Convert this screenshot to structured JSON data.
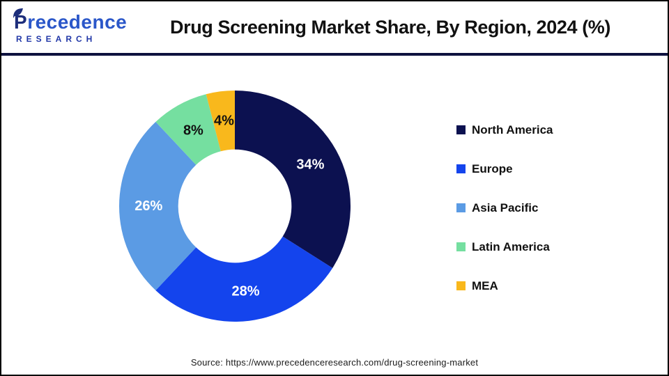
{
  "header": {
    "logo": {
      "word": "Precedence",
      "subword": "RESEARCH"
    },
    "title": "Drug Screening Market Share, By Region, 2024 (%)"
  },
  "chart_data": {
    "type": "pie",
    "subtype": "donut",
    "title": "Drug Screening Market Share, By Region, 2024 (%)",
    "unit": "%",
    "direction": "clockwise",
    "start_angle_deg": 0,
    "inner_radius_ratio": 0.49,
    "legend_position": "right",
    "labels": [
      "North America",
      "Europe",
      "Asia Pacific",
      "Latin America",
      "MEA"
    ],
    "values": [
      34,
      28,
      26,
      8,
      4
    ],
    "colors": [
      "#0C1150",
      "#1444ED",
      "#5B9BE4",
      "#75DFA0",
      "#F9B81C"
    ],
    "value_label_colors": [
      "#FFFFFF",
      "#FFFFFF",
      "#FFFFFF",
      "#111111",
      "#111111"
    ]
  },
  "footer": {
    "source": "Source: https://www.precedenceresearch.com/drug-screening-market"
  }
}
